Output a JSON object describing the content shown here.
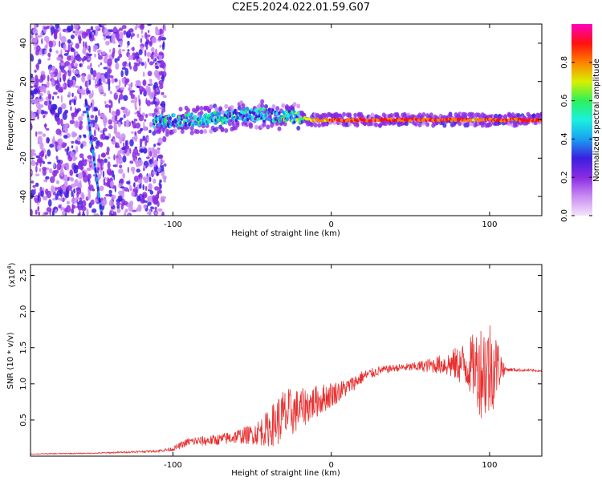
{
  "title": "C2E5.2024.022.01.59.G07",
  "colorbar_label": "Normalized spectral amplitude",
  "colorbar_ticks": [
    "0.0",
    "0.2",
    "0.4",
    "0.6",
    "0.8"
  ],
  "colors": {
    "background": "#ffffff",
    "snr_line": "#e83030",
    "ridge_core": "#e8102c",
    "colormap": [
      "#f4e4fb",
      "#c98cf2",
      "#8a2be2",
      "#3a1fe0",
      "#1aa0f0",
      "#19f0e0",
      "#2ef05a",
      "#d8f000",
      "#ff8000",
      "#ff1010",
      "#ff00c0"
    ]
  },
  "chart_data": [
    {
      "type": "heatmap",
      "xlabel": "Height of straight line (km)",
      "ylabel": "Frequency (Hz)",
      "xlim": [
        -190,
        133
      ],
      "ylim": [
        -50,
        50
      ],
      "x_ticks": [
        -100,
        0,
        100
      ],
      "y_ticks": [
        -40,
        -20,
        0,
        20,
        40
      ],
      "zlim": [
        0,
        1
      ],
      "grid": false,
      "ridge": {
        "description_values": "center frequency vs height",
        "x": [
          -110,
          -90,
          -70,
          -50,
          -35,
          -20,
          -10,
          0,
          20,
          40,
          60,
          80,
          90,
          100,
          133
        ],
        "freq": [
          -1,
          0,
          1,
          3,
          2,
          1,
          0,
          0,
          0,
          0,
          0,
          0,
          0,
          0,
          0
        ],
        "amplitude": [
          0.55,
          0.55,
          0.55,
          0.5,
          0.55,
          0.7,
          0.8,
          0.9,
          0.92,
          0.93,
          0.93,
          0.9,
          0.85,
          0.9,
          0.95
        ]
      },
      "diagonal_feature": {
        "x": [
          -155,
          -145
        ],
        "freq": [
          10,
          -50
        ],
        "amplitude": 0.35
      }
    },
    {
      "type": "line",
      "xlabel": "Height of straight line (km)",
      "ylabel": "SNR (10 * v/v)",
      "y_multiplier_label": "(x10",
      "y_multiplier_exp": "4",
      "y_multiplier_close": ")",
      "xlim": [
        -190,
        133
      ],
      "ylim": [
        0,
        26500
      ],
      "x_ticks": [
        -100,
        0,
        100
      ],
      "y_ticks": [
        0.5,
        1.0,
        1.5,
        2.0,
        2.5
      ],
      "y_tick_labels": [
        "0.5",
        "1.0",
        "1.5",
        "2.0",
        "2.5"
      ],
      "series": [
        {
          "x": [
            -190,
            -150,
            -110,
            -100,
            -90,
            -80,
            -70,
            -60,
            -50,
            -40,
            -30,
            -20,
            -10,
            0,
            10,
            20,
            30,
            40,
            50,
            60,
            70,
            80,
            90,
            95,
            100,
            105,
            110,
            120,
            133
          ],
          "values": [
            300,
            400,
            700,
            1000,
            2000,
            2100,
            2300,
            2700,
            3000,
            3800,
            5500,
            6500,
            7500,
            8500,
            9500,
            11000,
            11800,
            12200,
            12300,
            12500,
            12700,
            12700,
            12500,
            12000,
            12200,
            12500,
            12000,
            11900,
            11800
          ],
          "noise": [
            50,
            80,
            150,
            300,
            600,
            700,
            800,
            1000,
            1400,
            2500,
            4000,
            2800,
            2300,
            1800,
            1200,
            900,
            600,
            500,
            600,
            900,
            1400,
            2500,
            4500,
            7000,
            7500,
            4000,
            300,
            200,
            150
          ]
        }
      ]
    }
  ]
}
